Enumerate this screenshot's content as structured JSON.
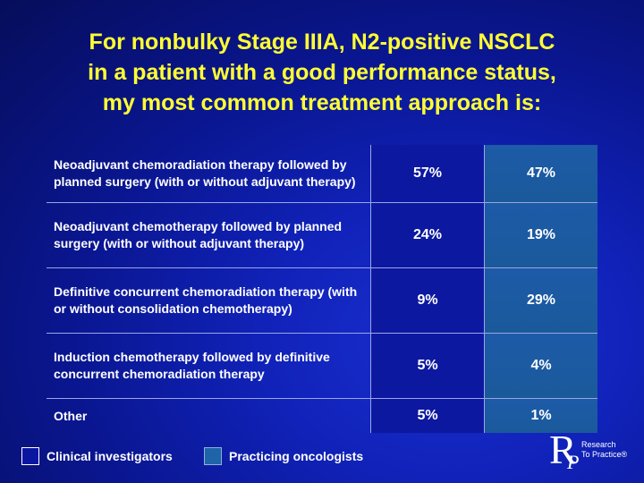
{
  "title_lines": [
    "For nonbulky Stage IIIA, N2-positive NSCLC",
    "in a patient with a good performance status,",
    "my most common treatment approach is:"
  ],
  "rows": [
    {
      "label": "Neoadjuvant chemoradiation therapy followed by planned surgery (with or without adjuvant therapy)",
      "clinical": "57%",
      "practicing": "47%"
    },
    {
      "label": "Neoadjuvant chemotherapy followed by planned surgery (with or without adjuvant therapy)",
      "clinical": "24%",
      "practicing": "19%"
    },
    {
      "label": "Definitive concurrent chemoradiation therapy (with or without consolidation chemotherapy)",
      "clinical": "9%",
      "practicing": "29%"
    },
    {
      "label": "Induction chemotherapy followed by definitive concurrent chemoradiation therapy",
      "clinical": "5%",
      "practicing": "4%"
    },
    {
      "label": "Other",
      "clinical": "5%",
      "practicing": "1%"
    }
  ],
  "legend": {
    "clinical": "Clinical investigators",
    "practicing": "Practicing oncologists"
  },
  "logo": {
    "letter_r": "R",
    "letter_p": "P",
    "line1": "Research",
    "line2": "To Practice®"
  },
  "colors": {
    "title": "#ffff33",
    "clinical_cell": "#0c18a0",
    "practicing_cell": "#1d5aa8"
  }
}
